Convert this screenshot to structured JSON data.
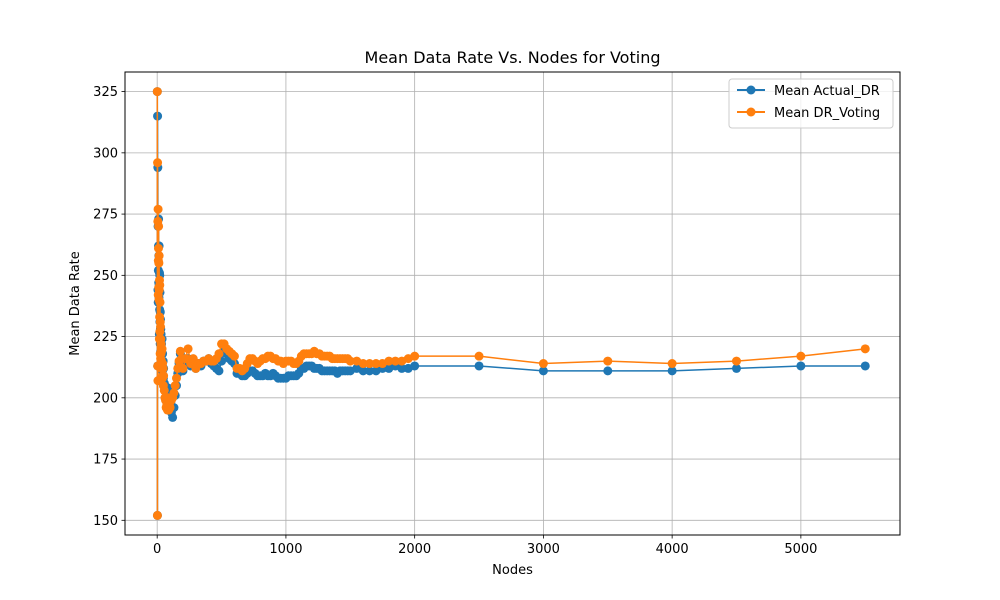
{
  "chart_data": {
    "type": "line",
    "title": "Mean Data Rate Vs. Nodes for Voting",
    "xlabel": "Nodes",
    "ylabel": "Mean Data Rate",
    "xlim": [
      -250,
      5770
    ],
    "ylim": [
      144,
      333
    ],
    "xticks": [
      0,
      1000,
      2000,
      3000,
      4000,
      5000
    ],
    "yticks": [
      150,
      175,
      200,
      225,
      250,
      275,
      300,
      325
    ],
    "grid": true,
    "legend": "top-right",
    "colors": {
      "Mean Actual_DR": "#1f77b4",
      "Mean DR_Voting": "#ff7f0e"
    },
    "series": [
      {
        "name": "Mean Actual_DR",
        "x": [
          1,
          2,
          3,
          4,
          5,
          6,
          7,
          8,
          9,
          10,
          11,
          12,
          13,
          14,
          15,
          16,
          17,
          18,
          19,
          20,
          21,
          22,
          23,
          24,
          25,
          26,
          27,
          28,
          29,
          30,
          32,
          34,
          36,
          38,
          40,
          42,
          44,
          46,
          48,
          50,
          55,
          60,
          65,
          70,
          75,
          80,
          85,
          90,
          95,
          100,
          110,
          120,
          130,
          140,
          150,
          160,
          170,
          180,
          190,
          200,
          220,
          240,
          260,
          280,
          300,
          320,
          340,
          360,
          380,
          400,
          420,
          440,
          460,
          480,
          500,
          520,
          540,
          560,
          580,
          600,
          620,
          640,
          660,
          680,
          700,
          720,
          740,
          760,
          780,
          800,
          820,
          840,
          860,
          880,
          900,
          920,
          940,
          960,
          980,
          1000,
          1020,
          1040,
          1060,
          1080,
          1100,
          1120,
          1140,
          1160,
          1180,
          1200,
          1220,
          1240,
          1260,
          1280,
          1300,
          1320,
          1340,
          1360,
          1380,
          1400,
          1420,
          1440,
          1460,
          1480,
          1500,
          1550,
          1600,
          1650,
          1700,
          1750,
          1800,
          1850,
          1900,
          1950,
          2000,
          2500,
          3000,
          3500,
          4000,
          4500,
          5000,
          5500
        ],
        "values": [
          325,
          152,
          315,
          213,
          294,
          244,
          270,
          239,
          252,
          262,
          273,
          247,
          258,
          241,
          262,
          246,
          226,
          251,
          236,
          250,
          231,
          243,
          222,
          235,
          228,
          232,
          219,
          228,
          222,
          226,
          218,
          222,
          215,
          224,
          211,
          218,
          212,
          215,
          208,
          212,
          206,
          205,
          203,
          200,
          201,
          199,
          204,
          198,
          200,
          196,
          194,
          192,
          196,
          201,
          205,
          210,
          214,
          218,
          215,
          211,
          214,
          216,
          213,
          215,
          212,
          214,
          213,
          215,
          215,
          216,
          214,
          213,
          212,
          211,
          215,
          219,
          218,
          216,
          215,
          214,
          210,
          210,
          209,
          209,
          210,
          211,
          211,
          210,
          209,
          209,
          209,
          210,
          209,
          209,
          210,
          209,
          208,
          208,
          208,
          208,
          209,
          209,
          209,
          209,
          210,
          212,
          212,
          213,
          213,
          213,
          212,
          212,
          212,
          211,
          211,
          211,
          211,
          211,
          211,
          210,
          211,
          211,
          211,
          211,
          211,
          212,
          211,
          211,
          211,
          212,
          212,
          213,
          212,
          212,
          213,
          213,
          211,
          211,
          211,
          212,
          213,
          213
        ]
      },
      {
        "name": "Mean DR_Voting",
        "x": [
          1,
          2,
          3,
          4,
          5,
          6,
          7,
          8,
          9,
          10,
          11,
          12,
          13,
          14,
          15,
          16,
          17,
          18,
          19,
          20,
          21,
          22,
          23,
          24,
          25,
          26,
          27,
          28,
          29,
          30,
          32,
          34,
          36,
          38,
          40,
          42,
          44,
          46,
          48,
          50,
          55,
          60,
          65,
          70,
          75,
          80,
          85,
          90,
          95,
          100,
          110,
          120,
          130,
          140,
          150,
          160,
          170,
          180,
          190,
          200,
          220,
          240,
          260,
          280,
          300,
          320,
          340,
          360,
          380,
          400,
          420,
          440,
          460,
          480,
          500,
          520,
          540,
          560,
          580,
          600,
          620,
          640,
          660,
          680,
          700,
          720,
          740,
          760,
          780,
          800,
          820,
          840,
          860,
          880,
          900,
          920,
          940,
          960,
          980,
          1000,
          1020,
          1040,
          1060,
          1080,
          1100,
          1120,
          1140,
          1160,
          1180,
          1200,
          1220,
          1240,
          1260,
          1280,
          1300,
          1320,
          1340,
          1360,
          1380,
          1400,
          1420,
          1440,
          1460,
          1480,
          1500,
          1550,
          1600,
          1650,
          1700,
          1750,
          1800,
          1850,
          1900,
          1950,
          2000,
          2500,
          3000,
          3500,
          4000,
          4500,
          5000,
          5500
        ],
        "values": [
          325,
          152,
          296,
          213,
          272,
          207,
          277,
          242,
          256,
          261,
          270,
          245,
          255,
          240,
          258,
          244,
          224,
          248,
          233,
          246,
          227,
          239,
          218,
          231,
          224,
          229,
          216,
          224,
          218,
          222,
          215,
          219,
          212,
          220,
          208,
          214,
          209,
          212,
          205,
          209,
          203,
          200,
          199,
          196,
          197,
          195,
          200,
          195,
          197,
          196,
          199,
          200,
          202,
          205,
          208,
          212,
          215,
          219,
          216,
          212,
          216,
          220,
          214,
          216,
          212,
          214,
          214,
          215,
          215,
          216,
          215,
          215,
          216,
          218,
          222,
          222,
          220,
          219,
          218,
          217,
          212,
          212,
          211,
          212,
          214,
          216,
          216,
          215,
          214,
          215,
          216,
          216,
          217,
          217,
          216,
          216,
          215,
          215,
          214,
          215,
          215,
          215,
          214,
          214,
          215,
          217,
          218,
          218,
          218,
          218,
          219,
          218,
          218,
          217,
          217,
          217,
          217,
          216,
          216,
          216,
          216,
          216,
          216,
          216,
          215,
          215,
          214,
          214,
          214,
          214,
          215,
          215,
          215,
          216,
          217,
          217,
          214,
          215,
          214,
          215,
          217,
          220
        ]
      }
    ]
  }
}
